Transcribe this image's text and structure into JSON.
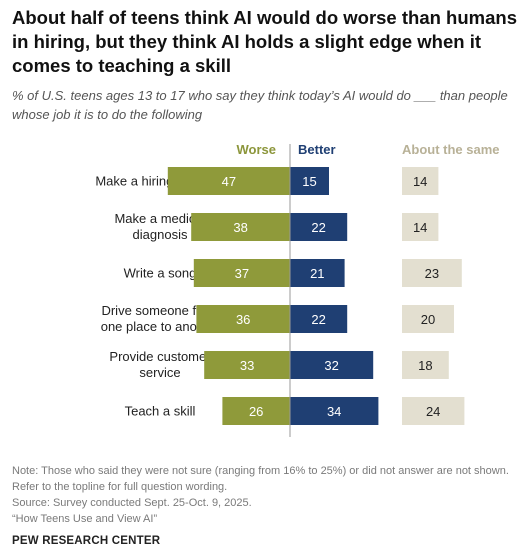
{
  "title": "About half of teens think AI would do worse than humans in hiring, but they think AI holds a slight edge when it comes to teaching a skill",
  "subtitle": "% of U.S. teens ages 13 to 17 who say they think today’s AI would do ___ than people whose job it is to do the following",
  "colors": {
    "worse": "#8f9a3a",
    "better": "#1f3f73",
    "same": "#e3dfd0",
    "worse_text": "#8c963b",
    "better_text": "#1f3f73",
    "same_text": "#b8b197"
  },
  "chart_data": {
    "type": "bar",
    "categories": [
      [
        "Make a hiring decision"
      ],
      [
        "Make a medical",
        "diagnosis"
      ],
      [
        "Write a song"
      ],
      [
        "Drive someone from",
        "one place to another"
      ],
      [
        "Provide customer",
        "service"
      ],
      [
        "Teach a skill"
      ]
    ],
    "series": [
      {
        "name": "Worse",
        "values": [
          47,
          38,
          37,
          36,
          33,
          26
        ]
      },
      {
        "name": "Better",
        "values": [
          15,
          22,
          21,
          22,
          32,
          34
        ]
      },
      {
        "name": "About the same",
        "values": [
          14,
          14,
          23,
          20,
          18,
          24
        ]
      }
    ]
  },
  "notes": {
    "note": "Note: Those who said they were not sure (ranging from 16% to 25%) or did not answer are not shown. Refer to the topline for full question wording.",
    "source": "Source: Survey conducted Sept. 25-Oct. 9, 2025.",
    "report": "“How Teens Use and View AI”",
    "org": "PEW RESEARCH CENTER"
  }
}
